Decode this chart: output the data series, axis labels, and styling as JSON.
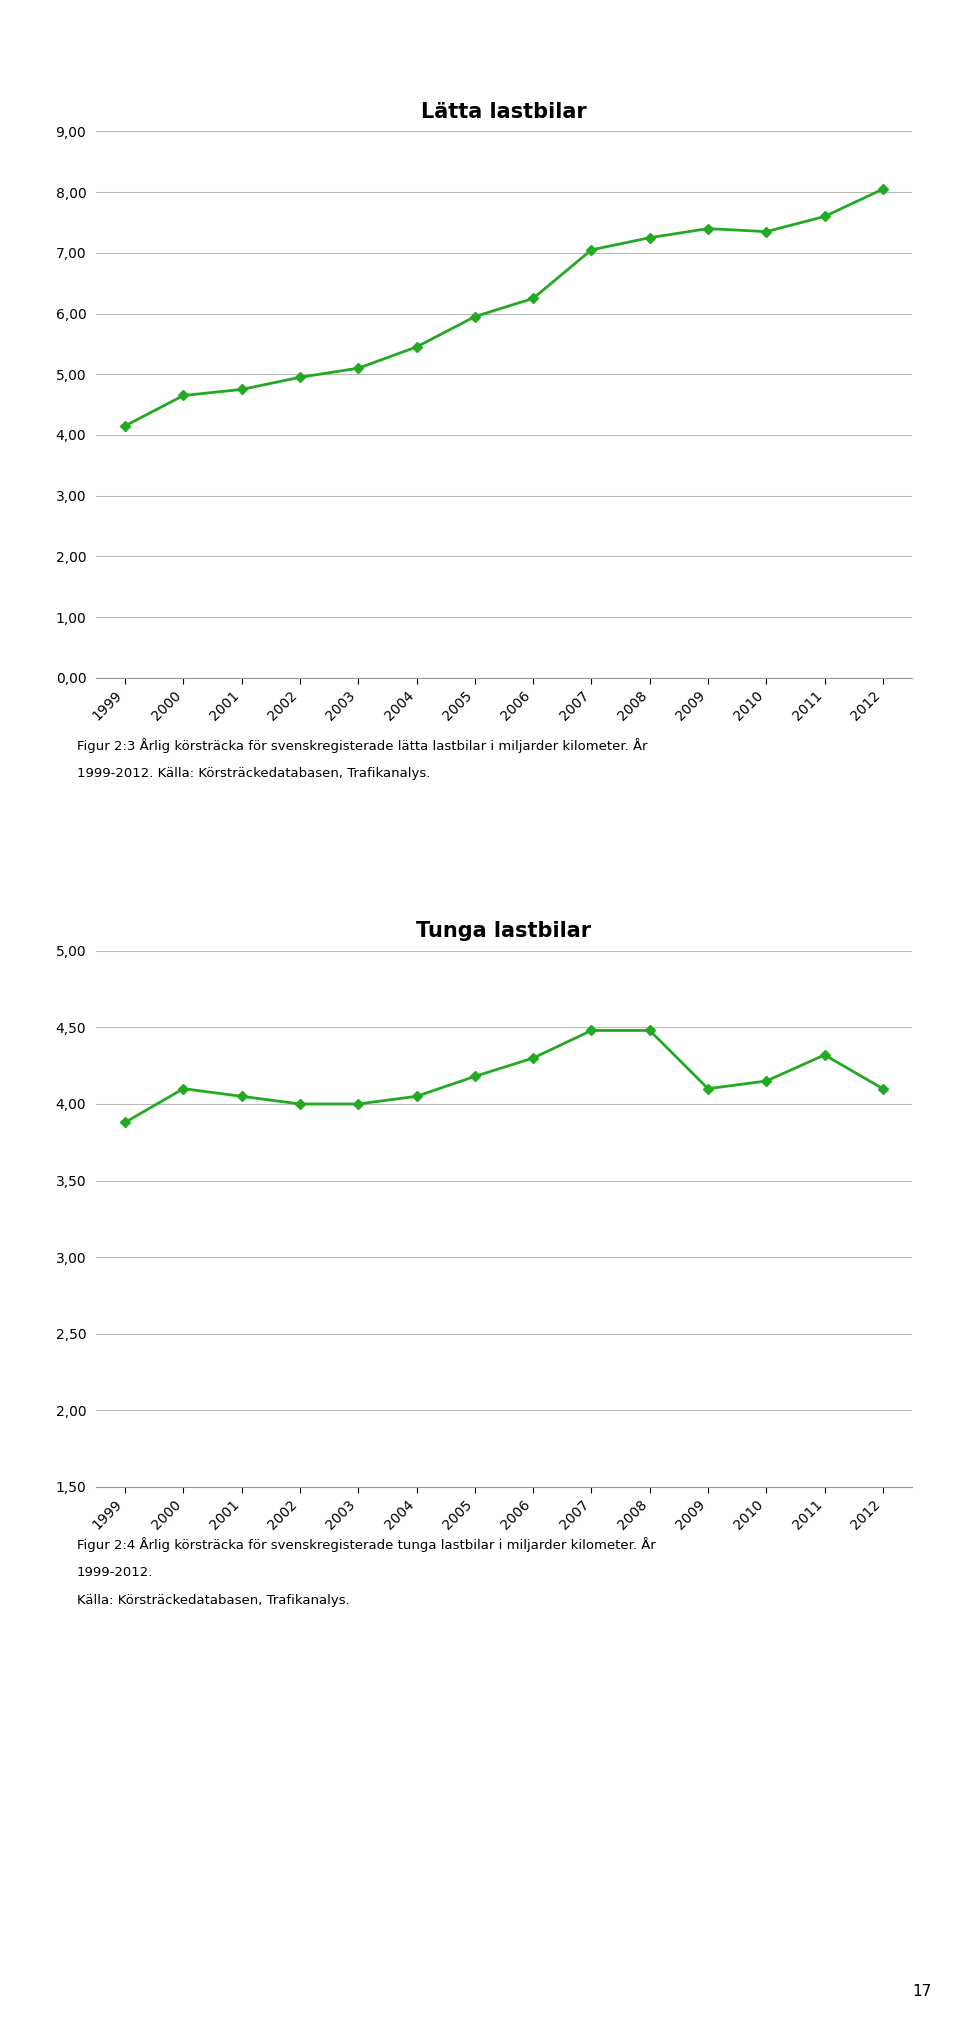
{
  "chart1": {
    "title": "Lätta lastbilar",
    "years": [
      1999,
      2000,
      2001,
      2002,
      2003,
      2004,
      2005,
      2006,
      2007,
      2008,
      2009,
      2010,
      2011,
      2012
    ],
    "data": [
      4.15,
      4.65,
      4.75,
      4.95,
      5.1,
      5.45,
      5.95,
      6.25,
      7.05,
      7.25,
      7.4,
      7.35,
      7.6,
      8.05
    ],
    "ylim": [
      0.0,
      9.0
    ],
    "yticks": [
      0.0,
      1.0,
      2.0,
      3.0,
      4.0,
      5.0,
      6.0,
      7.0,
      8.0,
      9.0
    ],
    "caption_line1": "Figur 2:3 Årlig körsträcka för svenskregisterade lätta lastbilar i miljarder kilometer. År",
    "caption_line2": "1999-2012. Källa: Körsträckedatabasen, Trafikanalys."
  },
  "chart2": {
    "title": "Tunga lastbilar",
    "years": [
      1999,
      2000,
      2001,
      2002,
      2003,
      2004,
      2005,
      2006,
      2007,
      2008,
      2009,
      2010,
      2011,
      2012
    ],
    "data": [
      3.88,
      4.1,
      4.05,
      4.0,
      4.0,
      4.05,
      4.18,
      4.3,
      4.48,
      4.48,
      4.1,
      4.15,
      4.32,
      4.1
    ],
    "ylim": [
      1.5,
      5.0
    ],
    "yticks": [
      1.5,
      2.0,
      2.5,
      3.0,
      3.5,
      4.0,
      4.5,
      5.0
    ],
    "caption_line1": "Figur 2:4 Årlig körsträcka för svenskregisterade tunga lastbilar i miljarder kilometer. År",
    "caption_line2": "1999-2012.",
    "caption_line3": "Källa: Körsträckedatabasen, Trafikanalys."
  },
  "line_color": "#22aa22",
  "marker": "D",
  "marker_size": 5,
  "line_width": 2.0,
  "grid_color": "#bbbbbb",
  "background_color": "#ffffff",
  "tick_label_rotation": 45,
  "page_number": "17"
}
